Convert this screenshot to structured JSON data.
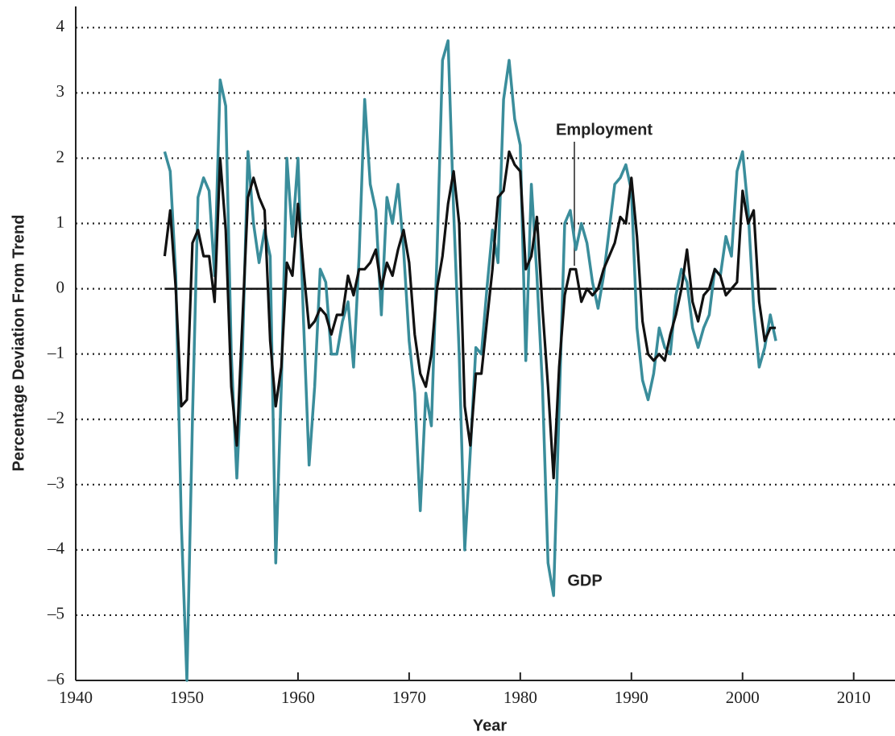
{
  "chart_data": {
    "type": "line",
    "x_label": "Year",
    "y_label": "Percentage Deviation From Trend",
    "annotations": [
      "Employment",
      "GDP"
    ],
    "x": [
      1948.0,
      1948.5,
      1949.0,
      1949.5,
      1950.0,
      1950.5,
      1951.0,
      1951.5,
      1952.0,
      1952.5,
      1953.0,
      1953.5,
      1954.0,
      1954.5,
      1955.0,
      1955.5,
      1956.0,
      1956.5,
      1957.0,
      1957.5,
      1958.0,
      1958.5,
      1959.0,
      1959.5,
      1960.0,
      1960.5,
      1961.0,
      1961.5,
      1962.0,
      1962.5,
      1963.0,
      1963.5,
      1964.0,
      1964.5,
      1965.0,
      1965.5,
      1966.0,
      1966.5,
      1967.0,
      1967.5,
      1968.0,
      1968.5,
      1969.0,
      1969.5,
      1970.0,
      1970.5,
      1971.0,
      1971.5,
      1972.0,
      1972.5,
      1973.0,
      1973.5,
      1974.0,
      1974.5,
      1975.0,
      1975.5,
      1976.0,
      1976.5,
      1977.0,
      1977.5,
      1978.0,
      1978.5,
      1979.0,
      1979.5,
      1980.0,
      1980.5,
      1981.0,
      1981.5,
      1982.0,
      1982.5,
      1983.0,
      1983.5,
      1984.0,
      1984.5,
      1985.0,
      1985.5,
      1986.0,
      1986.5,
      1987.0,
      1987.5,
      1988.0,
      1988.5,
      1989.0,
      1989.5,
      1990.0,
      1990.5,
      1991.0,
      1991.5,
      1992.0,
      1992.5,
      1993.0,
      1993.5,
      1994.0,
      1994.5,
      1995.0,
      1995.5,
      1996.0,
      1996.5,
      1997.0,
      1997.5,
      1998.0,
      1998.5,
      1999.0,
      1999.5,
      2000.0,
      2000.5,
      2001.0,
      2001.5,
      2002.0,
      2002.5,
      2003.0
    ],
    "series": [
      {
        "name": "GDP",
        "color": "#3a8d9b",
        "values": [
          2.1,
          1.8,
          0.2,
          -3.6,
          -6.0,
          -2.0,
          1.4,
          1.7,
          1.5,
          0.2,
          3.2,
          2.8,
          -1.0,
          -2.9,
          -1.0,
          2.1,
          1.0,
          0.4,
          0.9,
          0.5,
          -4.2,
          -1.5,
          2.0,
          0.8,
          2.0,
          -0.5,
          -2.7,
          -1.5,
          0.3,
          0.1,
          -1.0,
          -1.0,
          -0.5,
          -0.2,
          -1.2,
          0.5,
          2.9,
          1.6,
          1.2,
          -0.4,
          1.4,
          1.0,
          1.6,
          0.6,
          -0.8,
          -1.6,
          -3.4,
          -1.6,
          -2.1,
          0.5,
          3.5,
          3.8,
          1.2,
          -1.0,
          -4.0,
          -2.5,
          -0.9,
          -1.0,
          0.0,
          0.9,
          0.4,
          2.9,
          3.5,
          2.6,
          2.2,
          -1.1,
          1.6,
          0.2,
          -1.5,
          -4.2,
          -4.7,
          -1.8,
          1.0,
          1.2,
          0.6,
          1.0,
          0.7,
          0.1,
          -0.3,
          0.2,
          0.9,
          1.6,
          1.7,
          1.9,
          1.5,
          -0.6,
          -1.4,
          -1.7,
          -1.3,
          -0.6,
          -0.9,
          -1.0,
          -0.1,
          0.3,
          0.1,
          -0.6,
          -0.9,
          -0.6,
          -0.4,
          0.3,
          0.2,
          0.8,
          0.5,
          1.8,
          2.1,
          1.2,
          -0.3,
          -1.2,
          -0.9,
          -0.4,
          -0.8
        ]
      },
      {
        "name": "Employment",
        "color": "#111111",
        "values": [
          0.5,
          1.2,
          0.0,
          -1.8,
          -1.7,
          0.7,
          0.9,
          0.5,
          0.5,
          -0.2,
          2.0,
          0.9,
          -1.5,
          -2.4,
          -0.5,
          1.4,
          1.7,
          1.4,
          1.2,
          -0.8,
          -1.8,
          -1.2,
          0.4,
          0.2,
          1.3,
          0.3,
          -0.6,
          -0.5,
          -0.3,
          -0.4,
          -0.7,
          -0.4,
          -0.4,
          0.2,
          -0.1,
          0.3,
          0.3,
          0.4,
          0.6,
          0.0,
          0.4,
          0.2,
          0.6,
          0.9,
          0.4,
          -0.7,
          -1.3,
          -1.5,
          -1.0,
          0.0,
          0.5,
          1.3,
          1.8,
          1.0,
          -1.8,
          -2.4,
          -1.3,
          -1.3,
          -0.5,
          0.3,
          1.4,
          1.5,
          2.1,
          1.9,
          1.8,
          0.3,
          0.5,
          1.1,
          -0.3,
          -1.5,
          -2.9,
          -1.2,
          -0.1,
          0.3,
          0.3,
          -0.2,
          0.0,
          -0.1,
          0.0,
          0.3,
          0.5,
          0.7,
          1.1,
          1.0,
          1.7,
          0.8,
          -0.5,
          -1.0,
          -1.1,
          -1.0,
          -1.1,
          -0.7,
          -0.4,
          0.0,
          0.6,
          -0.2,
          -0.5,
          -0.1,
          0.0,
          0.3,
          0.2,
          -0.1,
          0.0,
          0.1,
          1.5,
          1.0,
          1.2,
          -0.2,
          -0.8,
          -0.6,
          -0.6
        ]
      }
    ],
    "xlim": [
      1940,
      2013.5
    ],
    "ylim": [
      -6,
      4.3
    ],
    "xticks": [
      1940,
      1950,
      1960,
      1970,
      1980,
      1990,
      2000,
      2010
    ],
    "yticks": [
      {
        "value": -6,
        "label": "–6"
      },
      {
        "value": -5,
        "label": "–5"
      },
      {
        "value": -4,
        "label": "–4"
      },
      {
        "value": -3,
        "label": "–3"
      },
      {
        "value": -2,
        "label": "–2"
      },
      {
        "value": -1,
        "label": "–1"
      },
      0,
      1,
      2,
      3,
      4
    ],
    "grid": true
  }
}
